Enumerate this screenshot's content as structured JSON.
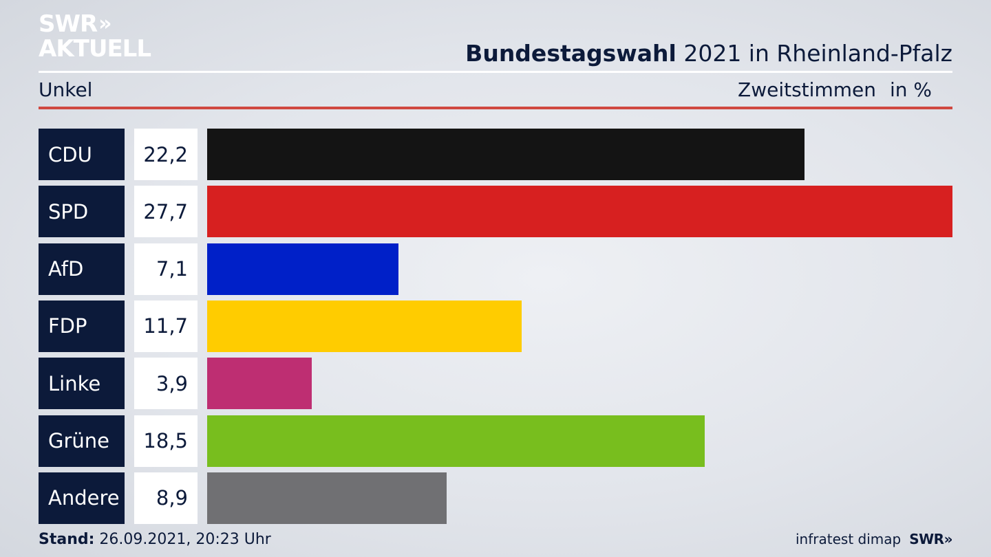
{
  "logo": {
    "line1": "SWR",
    "chevrons": "»",
    "line2": "AKTUELL"
  },
  "header": {
    "title_bold": "Bundestagswahl",
    "title_rest": "2021 in Rheinland-Pfalz",
    "location": "Unkel",
    "measure": "Zweitstimmen",
    "unit": "in %"
  },
  "chart_data": {
    "type": "bar",
    "orientation": "horizontal",
    "title": "Bundestagswahl 2021 in Rheinland-Pfalz",
    "subtitle": "Unkel",
    "xlabel": "Zweitstimmen in %",
    "categories": [
      "CDU",
      "SPD",
      "AfD",
      "FDP",
      "Linke",
      "Grüne",
      "Andere"
    ],
    "values": [
      22.2,
      27.7,
      7.1,
      11.7,
      3.9,
      18.5,
      8.9
    ],
    "value_labels": [
      "22,2",
      "27,7",
      "7,1",
      "11,7",
      "3,9",
      "18,5",
      "8,9"
    ],
    "colors": [
      "#141414",
      "#d72020",
      "#0020c8",
      "#ffcc00",
      "#be2e72",
      "#78be1e",
      "#707073"
    ],
    "xlim": [
      0,
      27.7
    ],
    "grid": false,
    "legend": "none"
  },
  "footer": {
    "stand_label": "Stand:",
    "stand_value": "26.09.2021, 20:23 Uhr",
    "source": "infratest dimap",
    "brand": "SWR»"
  }
}
